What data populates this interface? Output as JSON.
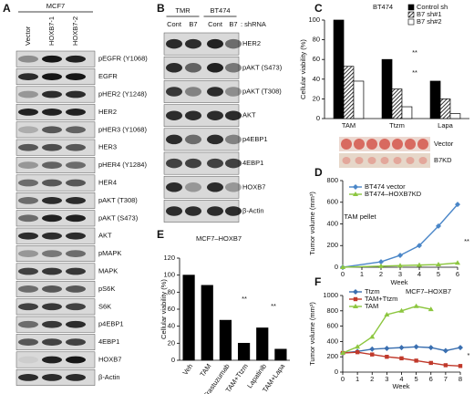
{
  "blots": [
    {
      "panel": "A",
      "header": "MCF7",
      "lanes": [
        "Vector",
        "HOXB7-1",
        "HOXB7-2"
      ],
      "rows": [
        "pEGFR (Y1068)",
        "EGFR",
        "pHER2 (Y1248)",
        "HER2",
        "pHER3 (Y1068)",
        "HER3",
        "pHER4 (Y1284)",
        "HER4",
        "pAKT (T308)",
        "pAKT (S473)",
        "AKT",
        "pMAPK",
        "MAPK",
        "pS6K",
        "S6K",
        "p4EBP1",
        "4EBP1",
        "HOXB7",
        "β-Actin"
      ]
    },
    {
      "panel": "B",
      "groups": [
        "TMR",
        "BT474"
      ],
      "lanes": [
        "Cont",
        "B7",
        "Cont",
        "B7"
      ],
      "suffix": ": shRNA",
      "rows": [
        "HER2",
        "pAKT (S473)",
        "pAKT (T308)",
        "AKT",
        "p4EBP1",
        "4EBP1",
        "HOXB7",
        "β-Actin"
      ]
    }
  ],
  "chart_data": [
    {
      "type": "bar",
      "panel": "C",
      "title": "BT474",
      "ylabel": "Cellular viability (%)",
      "categories": [
        "TAM",
        "Ttzm",
        "Lapa"
      ],
      "series": [
        {
          "name": "Control sh",
          "color": "#000000",
          "values": [
            100,
            60,
            38
          ]
        },
        {
          "name": "B7 sh#1",
          "color": "#000000",
          "hatch": true,
          "values": [
            53,
            30,
            20
          ]
        },
        {
          "name": "B7 sh#2",
          "color": "#ffffff",
          "values": [
            38,
            12,
            5
          ]
        }
      ],
      "ylim": [
        0,
        100
      ],
      "yticks": [
        0,
        20,
        40,
        60,
        80,
        100
      ],
      "annotations": [
        "**",
        "**"
      ]
    },
    {
      "type": "line",
      "panel": "D",
      "photo_labels": [
        "Vector",
        "B7KD"
      ],
      "xlabel": "Week",
      "ylabel": "Tumor volume (mm³)",
      "x": [
        0,
        2,
        3,
        4,
        5,
        6
      ],
      "series": [
        {
          "name": "BT474 vector",
          "color": "#4a86c8",
          "marker": "diamond",
          "values": [
            0,
            50,
            110,
            200,
            380,
            580
          ]
        },
        {
          "name": "BT474–HOXB7KD",
          "color": "#8cc63f",
          "marker": "triangle",
          "values": [
            0,
            10,
            15,
            20,
            25,
            40
          ]
        }
      ],
      "xlim": [
        0,
        6
      ],
      "xticks": [
        0,
        1,
        2,
        3,
        4,
        5,
        6
      ],
      "ylim": [
        0,
        800
      ],
      "yticks": [
        0,
        200,
        400,
        600,
        800
      ],
      "annotations": [
        "TAM pellet",
        "**"
      ]
    },
    {
      "type": "bar",
      "panel": "E",
      "title": "MCF7–HOXB7",
      "ylabel": "Cellular viability (%)",
      "categories": [
        "Veh",
        "TAM",
        "Trastuzumab",
        "TAM+Ttzm",
        "Lapatinib",
        "TAM+Lapa"
      ],
      "series": [
        {
          "name": null,
          "color": "#000000",
          "values": [
            100,
            88,
            47,
            20,
            38,
            13
          ]
        }
      ],
      "ylim": [
        0,
        120
      ],
      "yticks": [
        0,
        20,
        40,
        60,
        80,
        100,
        120
      ],
      "annotations": [
        "**",
        "**"
      ]
    },
    {
      "type": "line",
      "panel": "F",
      "title": "MCF7–HOXB7",
      "xlabel": "Week",
      "ylabel": "Tumor volume (mm³)",
      "x": [
        0,
        1,
        2,
        3,
        4,
        5,
        6,
        7,
        8
      ],
      "series": [
        {
          "name": "Ttzm",
          "color": "#3a6fb0",
          "marker": "diamond",
          "values": [
            250,
            270,
            300,
            310,
            320,
            330,
            320,
            280,
            320
          ]
        },
        {
          "name": "TAM+Ttzm",
          "color": "#c0392b",
          "marker": "square",
          "values": [
            250,
            260,
            230,
            200,
            180,
            150,
            120,
            90,
            80
          ]
        },
        {
          "name": "TAM",
          "color": "#8cc63f",
          "marker": "triangle",
          "values": [
            250,
            330,
            460,
            750,
            800,
            860,
            820,
            null,
            null
          ]
        }
      ],
      "xlim": [
        0,
        8
      ],
      "xticks": [
        0,
        1,
        2,
        3,
        4,
        5,
        6,
        7,
        8
      ],
      "ylim": [
        0,
        1000
      ],
      "yticks": [
        0,
        200,
        400,
        600,
        800,
        1000
      ],
      "annotations": [
        "*"
      ]
    }
  ]
}
